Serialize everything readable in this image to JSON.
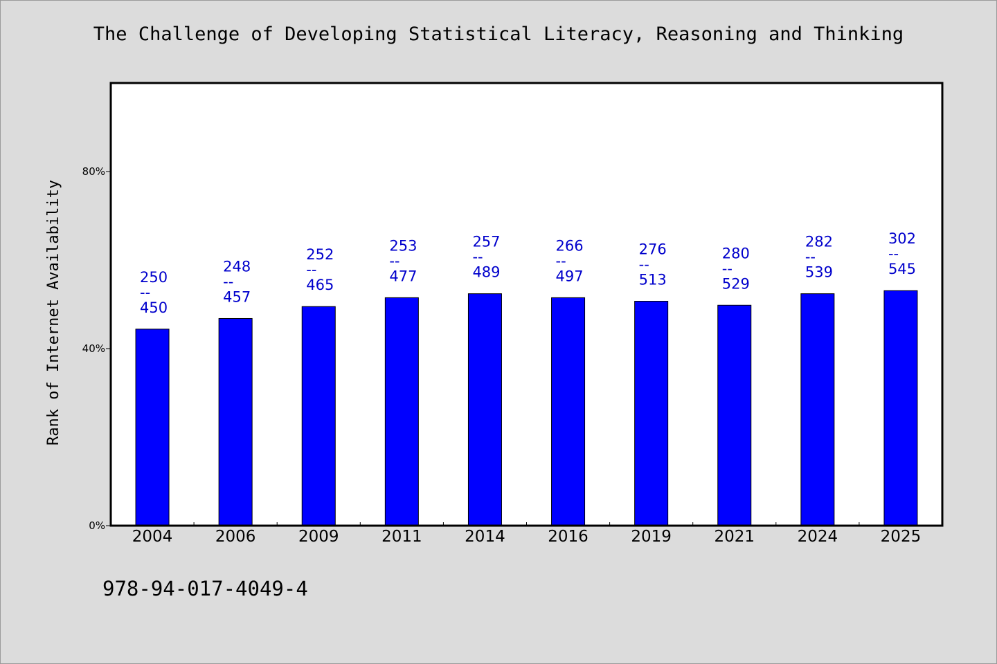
{
  "chart_data": {
    "type": "bar",
    "title": "The Challenge of Developing Statistical Literacy, Reasoning and Thinking",
    "ylabel": "Rank of Internet Availability",
    "xlabel": "",
    "categories": [
      "2004",
      "2006",
      "2009",
      "2011",
      "2014",
      "2016",
      "2019",
      "2021",
      "2024",
      "2025"
    ],
    "values": [
      44.4,
      46.8,
      49.5,
      51.5,
      52.4,
      51.5,
      50.7,
      49.8,
      52.4,
      53.1
    ],
    "data_labels": [
      {
        "top": "250",
        "sep": "--",
        "bottom": "450"
      },
      {
        "top": "248",
        "sep": "--",
        "bottom": "457"
      },
      {
        "top": "252",
        "sep": "--",
        "bottom": "465"
      },
      {
        "top": "253",
        "sep": "--",
        "bottom": "477"
      },
      {
        "top": "257",
        "sep": "--",
        "bottom": "489"
      },
      {
        "top": "266",
        "sep": "--",
        "bottom": "497"
      },
      {
        "top": "276",
        "sep": "--",
        "bottom": "513"
      },
      {
        "top": "280",
        "sep": "--",
        "bottom": "529"
      },
      {
        "top": "282",
        "sep": "--",
        "bottom": "539"
      },
      {
        "top": "302",
        "sep": "--",
        "bottom": "545"
      }
    ],
    "ylim": [
      0,
      100
    ],
    "yticks": [
      {
        "value": 0,
        "label": "0%"
      },
      {
        "value": 40,
        "label": "40%"
      },
      {
        "value": 80,
        "label": "80%"
      }
    ],
    "grid": false,
    "legend": "none",
    "colors": {
      "bar": "#0000ff",
      "label": "#0000cc",
      "background": "#dcdcdc",
      "plot": "#ffffff"
    }
  },
  "footer": {
    "isbn": "978-94-017-4049-4"
  }
}
